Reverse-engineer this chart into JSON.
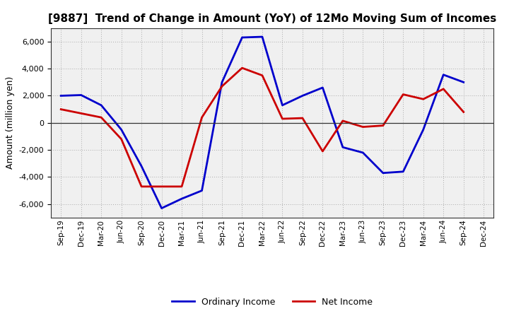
{
  "title": "[9887]  Trend of Change in Amount (YoY) of 12Mo Moving Sum of Incomes",
  "ylabel": "Amount (million yen)",
  "xlabels": [
    "Sep-19",
    "Dec-19",
    "Mar-20",
    "Jun-20",
    "Sep-20",
    "Dec-20",
    "Mar-21",
    "Jun-21",
    "Sep-21",
    "Dec-21",
    "Mar-22",
    "Jun-22",
    "Sep-22",
    "Dec-22",
    "Mar-23",
    "Jun-23",
    "Sep-23",
    "Dec-23",
    "Mar-24",
    "Jun-24",
    "Sep-24",
    "Dec-24"
  ],
  "ordinary_income": [
    2000,
    2050,
    1300,
    -500,
    -3200,
    -6300,
    -5600,
    -5000,
    3000,
    6300,
    6350,
    1300,
    2000,
    2600,
    -1800,
    -2200,
    -3700,
    -3600,
    -500,
    3550,
    3000,
    null
  ],
  "net_income": [
    1000,
    700,
    400,
    -1200,
    -4700,
    -4700,
    -4700,
    400,
    2700,
    4050,
    3500,
    300,
    350,
    -2100,
    150,
    -300,
    -200,
    2100,
    1750,
    2500,
    800,
    null
  ],
  "ordinary_income_color": "#0000cc",
  "net_income_color": "#cc0000",
  "ylim": [
    -7000,
    7000
  ],
  "yticks": [
    -6000,
    -4000,
    -2000,
    0,
    2000,
    4000,
    6000
  ],
  "plot_bg_color": "#f0f0f0",
  "fig_bg_color": "#ffffff",
  "grid_color": "#aaaaaa",
  "linewidth": 2.0,
  "legend_ordinary": "Ordinary Income",
  "legend_net": "Net Income",
  "title_fontsize": 11,
  "ylabel_fontsize": 9,
  "tick_fontsize": 8,
  "xtick_fontsize": 7.5
}
